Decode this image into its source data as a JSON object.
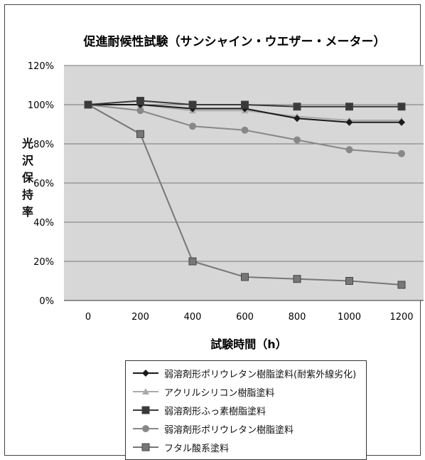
{
  "chart_data": {
    "type": "line",
    "title": "促進耐候性試験（サンシャイン・ウエザー・メーター）",
    "xlabel": "試験時間（h）",
    "ylabel": "光沢保持率",
    "x": [
      0,
      200,
      400,
      600,
      800,
      1000,
      1200
    ],
    "y_ticks": [
      "0%",
      "20%",
      "40%",
      "60%",
      "80%",
      "100%",
      "120%"
    ],
    "ylim": [
      0,
      120
    ],
    "grid": true,
    "legend_position": "bottom",
    "series": [
      {
        "name": "弱溶剤形ポリウレタン樹脂塗料(耐紫外線劣化)",
        "values": [
          100,
          100,
          98,
          98,
          93,
          91,
          91
        ],
        "marker": "diamond",
        "color": "#1a1a1a"
      },
      {
        "name": "アクリルシリコン樹脂塗料",
        "values": [
          100,
          100,
          97,
          97,
          94,
          92,
          92
        ],
        "marker": "triangle",
        "color": "#aaaaaa"
      },
      {
        "name": "弱溶剤形ふっ素樹脂塗料",
        "values": [
          100,
          102,
          100,
          100,
          99,
          99,
          99
        ],
        "marker": "square",
        "color": "#3a3a3a"
      },
      {
        "name": "弱溶剤形ポリウレタン樹脂塗料",
        "values": [
          100,
          97,
          89,
          87,
          82,
          77,
          75
        ],
        "marker": "circle",
        "color": "#888888"
      },
      {
        "name": "フタル酸系塗料",
        "values": [
          100,
          85,
          20,
          12,
          11,
          10,
          8
        ],
        "marker": "square",
        "color": "#777777"
      }
    ]
  }
}
